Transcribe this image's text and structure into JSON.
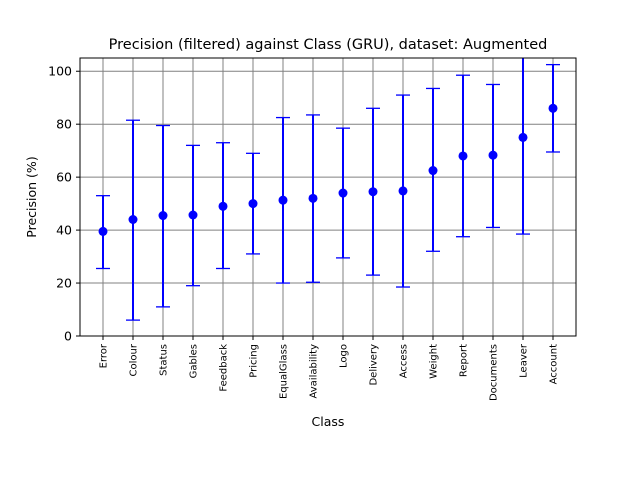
{
  "chart_data": {
    "type": "scatter",
    "title": "Precision (filtered) against Class (GRU), dataset: Augmented",
    "xlabel": "Class",
    "ylabel": "Precision (%)",
    "ylim": [
      0,
      105
    ],
    "yticks": [
      0,
      20,
      40,
      60,
      80,
      100
    ],
    "grid": true,
    "color": "#0000ff",
    "categories": [
      "Error",
      "Colour",
      "Status",
      "Gables",
      "Feedback",
      "Pricing",
      "EqualGlass",
      "Availability",
      "Logo",
      "Delivery",
      "Access",
      "Weight",
      "Report",
      "Documents",
      "Leaver",
      "Account"
    ],
    "series": [
      {
        "values": [
          39.5,
          44,
          45.5,
          45.7,
          49,
          50,
          51.3,
          52,
          54,
          54.5,
          54.8,
          62.5,
          68,
          68.3,
          75,
          86
        ],
        "lower": [
          25.5,
          6,
          11,
          19,
          25.5,
          31,
          20,
          20.3,
          29.5,
          23,
          18.5,
          32,
          37.5,
          41,
          38.5,
          69.5
        ],
        "upper": [
          53,
          81.5,
          79.5,
          72,
          73,
          69,
          82.5,
          83.5,
          78.5,
          86,
          91,
          93.5,
          98.5,
          95,
          105.5,
          102.5
        ]
      }
    ]
  }
}
